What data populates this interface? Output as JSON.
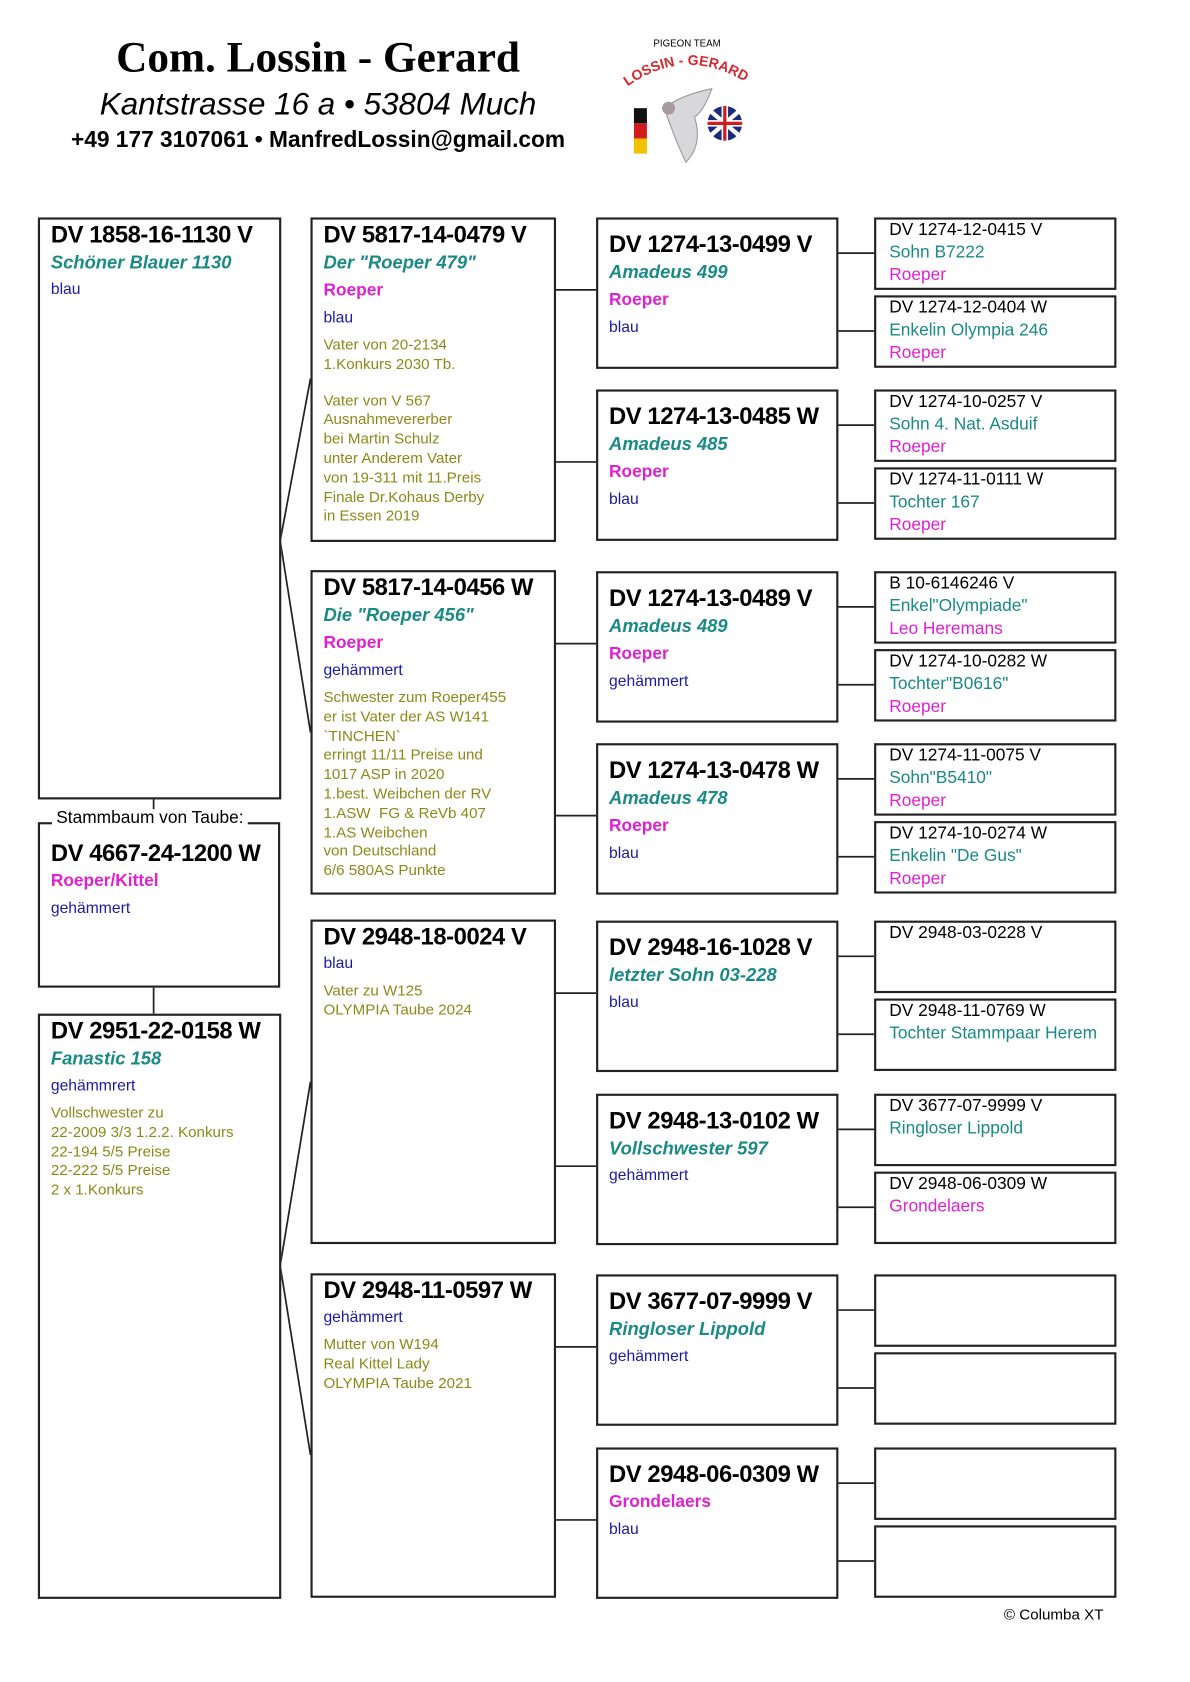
{
  "header": {
    "title": "Com. Lossin - Gerard",
    "address": "Kantstrasse 16 a • 53804 Much",
    "contact": "+49 177 3107061 • ManfredLossin@gmail.com"
  },
  "logo": {
    "top_text": "PIGEON TEAM",
    "arc_text": "LOSSIN - GERARD",
    "accent": "#d7262e"
  },
  "colors": {
    "name": "#1a8a86",
    "breeder": "#e020d0",
    "color": "#1a1aa8",
    "note": "#8a8a1a"
  },
  "subject": {
    "label": "Stammbaum von Taube:",
    "ring": "DV 4667-24-1200 W",
    "breeder": "Roeper/Kittel",
    "color": "gehämmert"
  },
  "parents": [
    {
      "ring": "DV 1858-16-1130 V",
      "name": "Schöner Blauer 1130",
      "color": "blau"
    },
    {
      "ring": "DV 2951-22-0158 W",
      "name": "Fanastic 158",
      "color": "gehämmrert",
      "notes": [
        "Vollschwester zu\n22-2009 3/3 1.2.2. Konkurs\n22-194 5/5 Preise\n22-222 5/5 Preise\n2 x 1.Konkurs"
      ]
    }
  ],
  "grandparents": [
    {
      "ring": "DV 5817-14-0479 V",
      "name": "Der \"Roeper 479\"",
      "breeder": "Roeper",
      "color": "blau",
      "notes": [
        "Vater von 20-2134\n1.Konkurs 2030 Tb.",
        "Vater von V 567\nAusnahmevererber\nbei Martin Schulz\nunter Anderem Vater\nvon 19-311 mit 11.Preis\nFinale Dr.Kohaus Derby\nin Essen 2019"
      ]
    },
    {
      "ring": "DV 5817-14-0456 W",
      "name": "Die \"Roeper 456\"",
      "breeder": "Roeper",
      "color": "gehämmert",
      "notes": [
        "Schwester zum Roeper455\ner ist Vater der AS W141\n`TINCHEN`\nerringt 11/11 Preise und\n1017 ASP in 2020\n1.best. Weibchen der RV\n1.ASW  FG & ReVb 407\n1.AS Weibchen\nvon Deutschland\n6/6 580AS Punkte"
      ]
    },
    {
      "ring": "DV 2948-18-0024 V",
      "color": "blau",
      "notes": [
        "Vater zu W125\nOLYMPIA Taube 2024"
      ]
    },
    {
      "ring": "DV 2948-11-0597 W",
      "color": "gehämmert",
      "notes": [
        "Mutter von W194\nReal Kittel Lady\nOLYMPIA Taube 2021"
      ]
    }
  ],
  "great_grandparents": [
    {
      "ring": "DV 1274-13-0499 V",
      "name": "Amadeus 499",
      "breeder": "Roeper",
      "color": "blau"
    },
    {
      "ring": "DV 1274-13-0485 W",
      "name": "Amadeus 485",
      "breeder": "Roeper",
      "color": "blau"
    },
    {
      "ring": "DV 1274-13-0489 V",
      "name": "Amadeus 489",
      "breeder": "Roeper",
      "color": "gehämmert"
    },
    {
      "ring": "DV 1274-13-0478 W",
      "name": "Amadeus 478",
      "breeder": "Roeper",
      "color": "blau"
    },
    {
      "ring": "DV 2948-16-1028 V",
      "name": "letzter Sohn 03-228",
      "color": "blau"
    },
    {
      "ring": "DV 2948-13-0102 W",
      "name": "Vollschwester 597",
      "color": "gehämmert"
    },
    {
      "ring": "DV 3677-07-9999 V",
      "name": "Ringloser Lippold",
      "color": "gehämmert"
    },
    {
      "ring": "DV 2948-06-0309 W",
      "breeder": "Grondelaers",
      "color": "blau"
    }
  ],
  "great_great_grandparents": [
    {
      "ring": "DV 1274-12-0415 V",
      "name": "Sohn B7222",
      "breeder": "Roeper"
    },
    {
      "ring": "DV 1274-12-0404 W",
      "name": "Enkelin Olympia 246",
      "breeder": "Roeper"
    },
    {
      "ring": "DV 1274-10-0257 V",
      "name": "Sohn 4. Nat. Asduif",
      "breeder": "Roeper"
    },
    {
      "ring": "DV 1274-11-0111 W",
      "name": "Tochter 167",
      "breeder": "Roeper"
    },
    {
      "ring": "B 10-6146246 V",
      "name": "Enkel\"Olympiade\"",
      "breeder": "Leo Heremans"
    },
    {
      "ring": "DV 1274-10-0282 W",
      "name": "Tochter\"B0616\"",
      "breeder": "Roeper"
    },
    {
      "ring": "DV 1274-11-0075 V",
      "name": "Sohn\"B5410\"",
      "breeder": "Roeper"
    },
    {
      "ring": "DV 1274-10-0274 W",
      "name": "Enkelin \"De Gus\"",
      "breeder": "Roeper"
    },
    {
      "ring": "DV 2948-03-0228 V"
    },
    {
      "ring": "DV 2948-11-0769 W",
      "name": "Tochter Stammpaar Herem"
    },
    {
      "ring": "DV 3677-07-9999 V",
      "name": "Ringloser Lippold"
    },
    {
      "ring": "DV 2948-06-0309 W",
      "breeder": "Grondelaers"
    },
    {},
    {},
    {},
    {}
  ],
  "footer": "© Columba XT"
}
